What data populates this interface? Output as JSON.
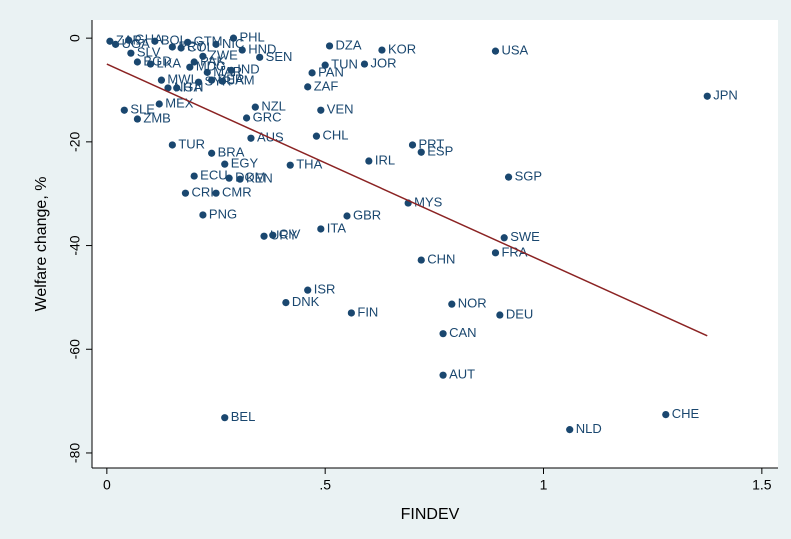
{
  "chart_data": {
    "type": "scatter",
    "xlabel": "FINDEV",
    "ylabel": "Welfare change, %",
    "xlim": [
      -0.034,
      1.537
    ],
    "ylim": [
      -82.9,
      3.5
    ],
    "xticks": [
      0,
      {
        "value": 0.5,
        "label": ".5"
      },
      1,
      1.5
    ],
    "yticks": [
      -80,
      -60,
      -40,
      -20,
      0
    ],
    "color": "#1a476f",
    "point_labels": [
      "PHL",
      "DZA",
      "KOR",
      "USA",
      "JPN",
      "TUN",
      "JOR",
      "PAN",
      "ZAF",
      "SEN",
      "NZL",
      "VEN",
      "GRC",
      "AUS",
      "CHL",
      "PRT",
      "ESP",
      "IRL",
      "SGP",
      "THA",
      "BRA",
      "EGY",
      "TUR",
      "ECU",
      "DOM",
      "KEN",
      "CRI",
      "CMR",
      "PNG",
      "GBR",
      "MYS",
      "ITA",
      "URY",
      "CIV",
      "SWE",
      "FRA",
      "CHN",
      "ISR",
      "DNK",
      "FIN",
      "NOR",
      "DEU",
      "CAN",
      "AUT",
      "BEL",
      "NLD",
      "CHE",
      "SLE",
      "ZMB",
      "MEX",
      "ZAR",
      "UGA",
      "GHA",
      "BOL",
      "SLV",
      "BGD",
      "GTM",
      "NIC",
      "HND",
      "COL",
      "ZWE",
      "PRY",
      "PAK",
      "LKA",
      "IND",
      "MDG",
      "MAR",
      "JAM",
      "PER",
      "MWI",
      "NGA",
      "HTI",
      "SYR"
    ],
    "x": [
      0.29,
      0.51,
      0.63,
      0.89,
      1.375,
      0.5,
      0.59,
      0.47,
      0.46,
      0.35,
      0.34,
      0.49,
      0.32,
      0.33,
      0.48,
      0.7,
      0.72,
      0.6,
      0.92,
      0.42,
      0.24,
      0.27,
      0.15,
      0.2,
      0.28,
      0.305,
      0.18,
      0.25,
      0.22,
      0.55,
      0.69,
      0.49,
      0.36,
      0.38,
      0.91,
      0.89,
      0.72,
      0.46,
      0.41,
      0.56,
      0.79,
      0.9,
      0.77,
      0.77,
      0.27,
      1.06,
      1.28,
      0.04,
      0.07,
      0.12,
      0.007,
      0.02,
      0.05,
      0.11,
      0.055,
      0.07,
      0.185,
      0.25,
      0.31,
      0.17,
      0.22,
      0.15,
      0.2,
      0.1,
      0.285,
      0.19,
      0.23,
      0.265,
      0.24,
      0.125,
      0.14,
      0.16,
      0.21
    ],
    "values": [
      0,
      -1.5,
      -2.3,
      -2.5,
      -11.2,
      -5.2,
      -5.0,
      -6.7,
      -9.4,
      -3.7,
      -13.3,
      -13.9,
      -15.4,
      -19.3,
      -18.9,
      -20.6,
      -22,
      -23.7,
      -26.8,
      -24.5,
      -22.2,
      -24.3,
      -20.6,
      -26.6,
      -27,
      -27.2,
      -29.9,
      -29.9,
      -34.1,
      -34.3,
      -31.8,
      -36.8,
      -38.2,
      -38,
      -38.5,
      -41.4,
      -42.8,
      -48.6,
      -51,
      -53,
      -51.3,
      -53.4,
      -57,
      -65,
      -73.2,
      -75.5,
      -72.6,
      -13.9,
      -15.6,
      -12.7,
      -0.6,
      -1.2,
      -0.4,
      -0.6,
      -2.9,
      -4.6,
      -0.8,
      -1.2,
      -2.3,
      -1.9,
      -3.5,
      -1.7,
      -4.6,
      -5.0,
      -6.2,
      -5.6,
      -6.6,
      -8.3,
      -8.1,
      -8.1,
      -9.6,
      -9.6,
      -8.5
    ],
    "fit_line": {
      "x": [
        0,
        1.375
      ],
      "values": [
        -5,
        -57.4
      ],
      "color": "#8b2323"
    }
  }
}
